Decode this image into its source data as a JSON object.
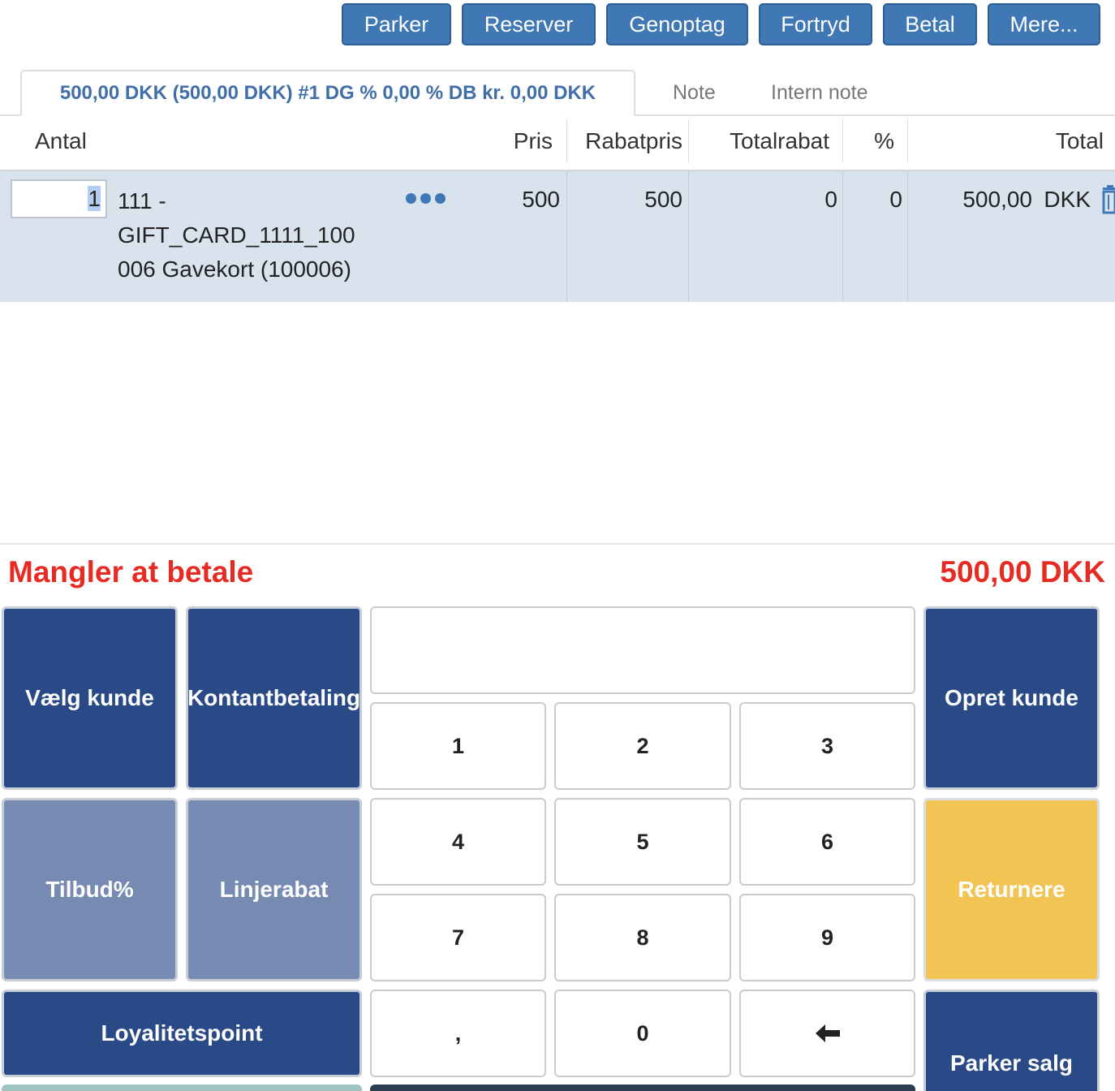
{
  "toolbar": {
    "buttons": [
      "Parker",
      "Reserver",
      "Genoptag",
      "Fortryd",
      "Betal",
      "Mere..."
    ]
  },
  "tabs": {
    "active": "500,00 DKK (500,00 DKK) #1 DG % 0,00 % DB kr. 0,00 DKK",
    "note": "Note",
    "intern_note": "Intern note"
  },
  "table": {
    "headers": {
      "antal": "Antal",
      "pris": "Pris",
      "rabatpris": "Rabatpris",
      "totalrabat": "Totalrabat",
      "procent": "%",
      "total": "Total"
    },
    "rows": [
      {
        "qty": "1",
        "desc_line1": "111 -",
        "desc_line2": "GIFT_CARD_1111_100",
        "desc_line3": "006 Gavekort (100006)",
        "pris": "500",
        "rabatpris": "500",
        "totalrabat": "0",
        "procent": "0",
        "total": "500,00",
        "currency": "DKK"
      }
    ]
  },
  "summary": {
    "label": "Mangler at betale",
    "amount": "500,00 DKK"
  },
  "keypad": {
    "vaelg_kunde": "Vælg kunde",
    "kontantbetaling": "Kontantbetaling",
    "opret_kunde": "Opret kunde",
    "tilbud": "Tilbud%",
    "linjerabat": "Linjerabat",
    "returnere": "Returnere",
    "loyalitetspoint": "Loyalitetspoint",
    "parker_salg": "Parker salg",
    "keys": [
      "1",
      "2",
      "3",
      "4",
      "5",
      "6",
      "7",
      "8",
      "9",
      ",",
      "0"
    ]
  },
  "colors": {
    "toolbar_button": "#3f78b5",
    "dark_button": "#2a4a87",
    "light_button": "#768ab2",
    "return_button": "#f1c453",
    "due_text": "#e52b22",
    "row_highlight": "#d9e3ed"
  }
}
